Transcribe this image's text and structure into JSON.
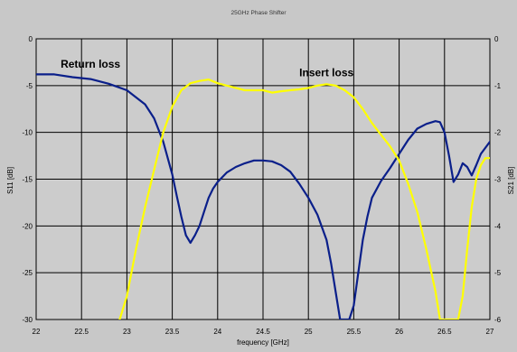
{
  "chart_data": {
    "type": "line",
    "title": "25GHz Phase Shifter",
    "xlabel": "frequency [GHz]",
    "ylabel_left": "S11 [dB]",
    "ylabel_right": "S21 [dB]",
    "xlim": [
      22,
      27
    ],
    "ylim_left": [
      -30,
      0
    ],
    "ylim_right": [
      -6,
      0
    ],
    "x_ticks": [
      "22",
      "22.5",
      "23",
      "23.5",
      "24",
      "24.5",
      "25",
      "25.5",
      "26",
      "26.5",
      "27"
    ],
    "y_left_ticks": [
      "0",
      "-5",
      "-10",
      "-15",
      "-20",
      "-25",
      "-30"
    ],
    "y_right_ticks": [
      "0",
      "-1",
      "-2",
      "-3",
      "-4",
      "-5",
      "-6"
    ],
    "grid": true,
    "colors": {
      "background": "#c8c8c8",
      "plot": "#cccccc",
      "s11": "#0a1f8a",
      "s21": "#ffff00",
      "grid": "#000000"
    },
    "annotations": [
      {
        "text": "Return loss",
        "x": 22.27,
        "y": -3.1
      },
      {
        "text": "Insert loss",
        "x": 24.9,
        "y": -4.0
      }
    ],
    "series": [
      {
        "axis": "left",
        "color": "#0a1f8a",
        "x": [
          22,
          22.2,
          22.4,
          22.6,
          22.8,
          23,
          23.2,
          23.3,
          23.4,
          23.5,
          23.55,
          23.6,
          23.65,
          23.7,
          23.75,
          23.8,
          23.85,
          23.9,
          23.95,
          24,
          24.1,
          24.2,
          24.3,
          24.4,
          24.5,
          24.6,
          24.7,
          24.8,
          24.9,
          25,
          25.1,
          25.2,
          25.25,
          25.3,
          25.35,
          25.45,
          25.5,
          25.55,
          25.6,
          25.65,
          25.7,
          25.8,
          25.9,
          26,
          26.1,
          26.2,
          26.3,
          26.4,
          26.45,
          26.5,
          26.55,
          26.6,
          26.65,
          26.7,
          26.75,
          26.8,
          26.85,
          26.9,
          27
        ],
        "y": [
          -3.8,
          -3.8,
          -4.1,
          -4.3,
          -4.8,
          -5.5,
          -7,
          -8.5,
          -11,
          -14.5,
          -16.8,
          -19,
          -21,
          -21.8,
          -21,
          -20,
          -18.5,
          -17,
          -16,
          -15.3,
          -14.3,
          -13.7,
          -13.3,
          -13,
          -13,
          -13.1,
          -13.5,
          -14.2,
          -15.5,
          -17,
          -18.8,
          -21.5,
          -24,
          -27,
          -30,
          -30,
          -28.5,
          -25,
          -21.5,
          -19,
          -17,
          -15.2,
          -13.8,
          -12.3,
          -10.8,
          -9.6,
          -9.1,
          -8.8,
          -8.9,
          -10,
          -12.5,
          -15.3,
          -14.5,
          -13.3,
          -13.7,
          -14.6,
          -13.5,
          -12.3,
          -11
        ]
      },
      {
        "axis": "right",
        "color": "#ffff00",
        "x": [
          22.92,
          23,
          23.05,
          23.1,
          23.2,
          23.3,
          23.4,
          23.5,
          23.6,
          23.7,
          23.8,
          23.9,
          24,
          24.1,
          24.2,
          24.3,
          24.4,
          24.5,
          24.6,
          24.7,
          24.8,
          24.9,
          25,
          25.1,
          25.2,
          25.3,
          25.4,
          25.5,
          25.6,
          25.7,
          25.8,
          25.9,
          26,
          26.1,
          26.2,
          26.3,
          26.4,
          26.45,
          26.5,
          26.55,
          26.6,
          26.65,
          26.7,
          26.75,
          26.8,
          26.85,
          26.9,
          26.95,
          27
        ],
        "y": [
          -6,
          -5.5,
          -5.0,
          -4.5,
          -3.6,
          -2.8,
          -2.0,
          -1.45,
          -1.1,
          -0.95,
          -0.9,
          -0.87,
          -0.95,
          -1.0,
          -1.05,
          -1.1,
          -1.1,
          -1.1,
          -1.15,
          -1.12,
          -1.1,
          -1.08,
          -1.05,
          -1.0,
          -0.97,
          -1.0,
          -1.1,
          -1.25,
          -1.5,
          -1.8,
          -2.05,
          -2.3,
          -2.6,
          -3.1,
          -3.7,
          -4.5,
          -5.4,
          -6,
          -6,
          -6,
          -6,
          -6,
          -5.5,
          -4.5,
          -3.6,
          -3.0,
          -2.7,
          -2.55,
          -2.55
        ]
      }
    ]
  }
}
